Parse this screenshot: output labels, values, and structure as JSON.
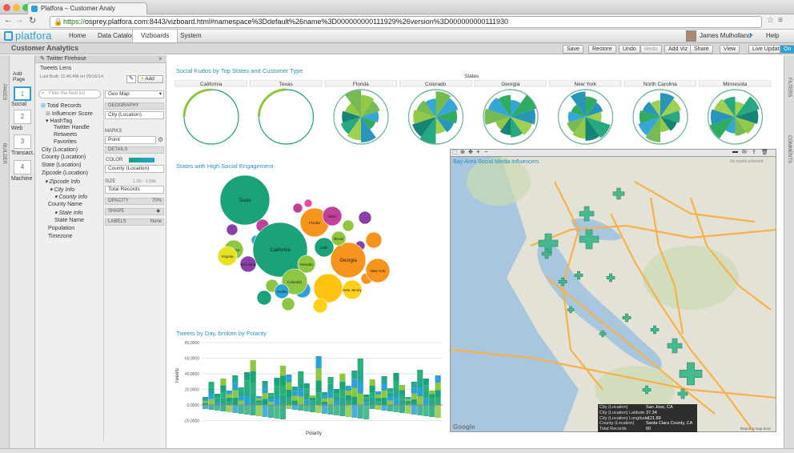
{
  "browser": {
    "tab_title": "Platfora – Customer Analy",
    "url_scheme": "https://",
    "url_rest": "osprey.platfora.com:8443/vizboard.html#namespace%3Ddefault%26name%3D000000000111929%26version%3D000000000111930"
  },
  "app": {
    "logo": "platfora",
    "nav_tabs": [
      "Home",
      "Data Catalog",
      "Vizboards",
      "System"
    ],
    "active_tab": "Vizboards",
    "user_name": "James Mulholland",
    "help": "Help"
  },
  "header": {
    "page_title": "Customer Analytics",
    "buttons": [
      "Save",
      "Restore",
      "Undo",
      "Redo",
      "Add Viz",
      "Share",
      "View",
      "Live Updates",
      "On"
    ]
  },
  "left": {
    "strip_labels": [
      "PAGES",
      "BUILDER"
    ],
    "add_page": "Add Page",
    "pages": [
      {
        "num": "1",
        "label": "Social"
      },
      {
        "num": "2",
        "label": "Web"
      },
      {
        "num": "3",
        "label": "Transact..."
      },
      {
        "num": "4",
        "label": "Machine"
      }
    ]
  },
  "builder": {
    "title": "Twitter Firehose",
    "lens": "Tweets Lens",
    "last_built": "Last Built: 11:46 AM on 05/16/14",
    "add": "Add",
    "filter_placeholder": "Filter the field list",
    "fields": [
      "Total Records",
      "Influencer Score",
      "HashTag",
      "Twitter Handle",
      "Retweets",
      "Favorites",
      "City (Location)",
      "County (Location)",
      "State (Location)",
      "Zipcode (Location)",
      "Zipcode Info",
      "City Info",
      "County Info",
      "County Name",
      "State Info",
      "State Name",
      "Population",
      "Timezone"
    ],
    "viz_type": "Geo Map",
    "geography_label": "GEOGRAPHY",
    "geography_value": "City (Location)",
    "marks_label": "MARKS",
    "marks_value": "Point",
    "details_label": "DETAILS",
    "color_label": "COLOR",
    "color_value": "County (Location)",
    "size_label": "SIZE",
    "size_range": "1.00 - 1.50k",
    "size_value": "Total Records",
    "opacity_label": "OPACITY",
    "opacity_value": "70%",
    "shape_label": "SHAPE",
    "labels_label": "LABELS",
    "labels_value": "None"
  },
  "right": {
    "strip_labels": [
      "FILTERS",
      "COMMENTS"
    ]
  },
  "viz_kudos": {
    "title": "Social Kudos by Top States and Customer Type",
    "header": "States",
    "states": [
      "California",
      "Texas",
      "Florida",
      "Colorado",
      "Georgia",
      "New York",
      "North Carolina",
      "Minnesota"
    ]
  },
  "viz_bubbles": {
    "title": "States with High Social Engagement",
    "labels": [
      "Texas",
      "California",
      "Oregon",
      "Florida",
      "Colorado",
      "Georgia",
      "Nevada",
      "Illinois",
      "New York",
      "Virginia",
      "Maryland",
      "Utah",
      "Idaho",
      "New Jersey",
      "Alaska"
    ]
  },
  "viz_tweets": {
    "title": "Tweets by Day, broken by Polarity",
    "ylabel": "Tweets",
    "xlabel": "Polarity",
    "yticks": [
      "80,0000",
      "60,0000",
      "40,0000",
      "20,0000",
      "0.0000",
      "-20,0000"
    ]
  },
  "viz_map": {
    "title": "Bay-Area Social Media Influencers",
    "no_marks": "No marks selected",
    "tooltip": [
      {
        "k": "City (Location)",
        "v": "San Jose, CA"
      },
      {
        "k": "City (Location) Latitude",
        "v": "37.34"
      },
      {
        "k": "City (Location) Longitude",
        "v": "-121.89"
      },
      {
        "k": "County (Location)",
        "v": "Santa Clara County, CA"
      },
      {
        "k": "Total Records",
        "v": "60"
      }
    ],
    "google": "Google",
    "attribution": "Report a map error"
  },
  "colors": {
    "accent": "#2aa2d5",
    "teal": "#1aa37a",
    "dark_teal": "#0a7d6e",
    "lime": "#8dc63f",
    "orange": "#f7941d",
    "purple": "#8b3fa8",
    "magenta": "#c2409a",
    "cross": "#3bb68a"
  }
}
